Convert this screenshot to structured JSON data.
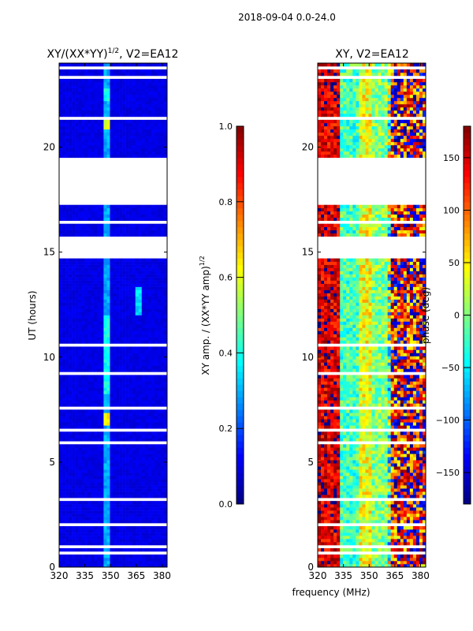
{
  "suptitle": "2018-09-04 0.0-24.0",
  "colors": {
    "frame": "#000000",
    "background": "#ffffff",
    "flagged": "#ffffff"
  },
  "chart_data": [
    {
      "type": "heatmap",
      "title_main": "XY/(XX*YY)",
      "title_sup": "1/2",
      "title_tail": ", V2=EA12",
      "xlabel": "",
      "ylabel": "UT (hours)",
      "xlim": [
        320,
        383
      ],
      "ylim": [
        0,
        24
      ],
      "xticks": [
        "320",
        "335",
        "350",
        "365",
        "380"
      ],
      "xtick_values": [
        320,
        335,
        350,
        365,
        380
      ],
      "yticks": [
        "0",
        "5",
        "10",
        "15",
        "20"
      ],
      "ytick_values": [
        0,
        5,
        10,
        15,
        20
      ],
      "colormap": "jet",
      "colorbar": {
        "label_main": "XY amp. / (XX*YY amp)",
        "label_sup": "1/2",
        "range": [
          0.0,
          1.0
        ],
        "ticks": [
          "0.0",
          "0.2",
          "0.4",
          "0.6",
          "0.8",
          "1.0"
        ],
        "tick_values": [
          0,
          0.2,
          0.4,
          0.6,
          0.8,
          1.0
        ]
      },
      "background_value": 0.08,
      "features": [
        {
          "freq_range": [
            346,
            350
          ],
          "ut_range": [
            0,
            24
          ],
          "value": 0.25
        },
        {
          "freq_range": [
            346,
            350
          ],
          "ut_range": [
            6.8,
            7.4
          ],
          "value": 0.6
        },
        {
          "freq_range": [
            346,
            350
          ],
          "ut_range": [
            20.8,
            21.3
          ],
          "value": 0.55
        },
        {
          "freq_range": [
            346,
            350
          ],
          "ut_range": [
            22.2,
            22.8
          ],
          "value": 0.35
        },
        {
          "freq_range": [
            346,
            350
          ],
          "ut_range": [
            8.3,
            12.0
          ],
          "value": 0.35
        },
        {
          "freq_range": [
            364,
            368
          ],
          "ut_range": [
            12.0,
            13.3
          ],
          "value": 0.3
        }
      ]
    },
    {
      "type": "heatmap",
      "title": "XY, V2=EA12",
      "xlabel": "frequency (MHz)",
      "ylabel": "",
      "xlim": [
        320,
        383
      ],
      "ylim": [
        0,
        24
      ],
      "xticks": [
        "320",
        "335",
        "350",
        "365",
        "380"
      ],
      "xtick_values": [
        320,
        335,
        350,
        365,
        380
      ],
      "yticks": [
        "0",
        "5",
        "10",
        "15",
        "20"
      ],
      "ytick_values": [
        0,
        5,
        10,
        15,
        20
      ],
      "colormap": "jet",
      "colorbar": {
        "label": "phase (deg)",
        "range": [
          -180,
          180
        ],
        "ticks": [
          "−150",
          "−100",
          "−50",
          "0",
          "50",
          "100",
          "150"
        ],
        "tick_values": [
          -150,
          -100,
          -50,
          0,
          50,
          100,
          150
        ]
      },
      "column_phase_profile": [
        {
          "freq_range": [
            320,
            333
          ],
          "value": 150
        },
        {
          "freq_range": [
            333,
            345
          ],
          "value": -20
        },
        {
          "freq_range": [
            345,
            351
          ],
          "value": 40
        },
        {
          "freq_range": [
            351,
            362
          ],
          "value": 0
        },
        {
          "freq_range": [
            362,
            383
          ],
          "value": 140
        }
      ]
    }
  ],
  "flagged_ut_ranges": [
    [
      0.15,
      0.2
    ],
    [
      0.65,
      0.75
    ],
    [
      0.95,
      1.05
    ],
    [
      1.5,
      1.55
    ],
    [
      1.8,
      1.85
    ],
    [
      2.0,
      2.05
    ],
    [
      3.2,
      3.25
    ],
    [
      3.6,
      3.65
    ],
    [
      4.0,
      4.05
    ],
    [
      4.8,
      4.85
    ],
    [
      5.5,
      5.55
    ],
    [
      5.9,
      5.95
    ],
    [
      6.1,
      6.15
    ],
    [
      6.5,
      6.55
    ],
    [
      6.75,
      6.8
    ],
    [
      7.55,
      7.6
    ],
    [
      8.05,
      8.1
    ],
    [
      8.4,
      8.45
    ],
    [
      8.65,
      8.7
    ],
    [
      9.2,
      9.25
    ],
    [
      10.0,
      10.05
    ],
    [
      10.5,
      10.6
    ],
    [
      10.95,
      11.0
    ],
    [
      11.8,
      11.85
    ],
    [
      13.0,
      13.05
    ],
    [
      13.3,
      13.35
    ],
    [
      13.6,
      13.65
    ],
    [
      13.9,
      13.95
    ],
    [
      14.2,
      14.25
    ],
    [
      14.4,
      14.45
    ],
    [
      14.7,
      15.75
    ],
    [
      15.9,
      15.95
    ],
    [
      16.15,
      16.2
    ],
    [
      16.4,
      16.45
    ],
    [
      16.65,
      16.7
    ],
    [
      17.2,
      19.5
    ],
    [
      19.8,
      19.85
    ],
    [
      20.2,
      20.3
    ],
    [
      20.5,
      20.55
    ],
    [
      21.35,
      21.4
    ],
    [
      21.7,
      21.75
    ],
    [
      22.0,
      22.05
    ],
    [
      22.9,
      22.95
    ],
    [
      23.2,
      23.35
    ],
    [
      23.75,
      23.8
    ]
  ]
}
